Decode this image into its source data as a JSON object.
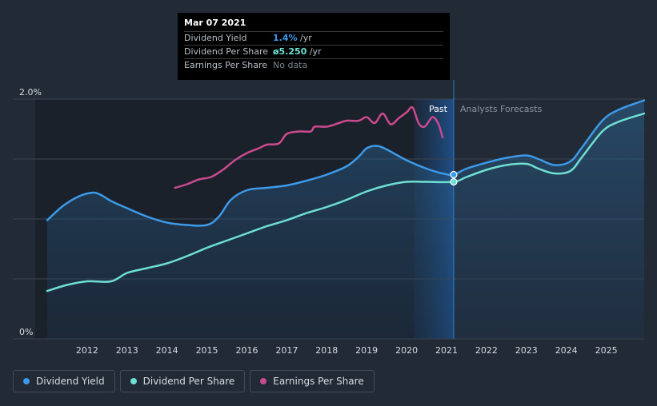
{
  "tooltip": {
    "date": "Mar 07 2021",
    "rows": [
      {
        "label": "Dividend Yield",
        "value": "1.4%",
        "unit": " /yr"
      },
      {
        "label": "Dividend Per Share",
        "value": "ø5.250",
        "unit": " /yr"
      },
      {
        "label": "Earnings Per Share",
        "value": "No data",
        "unit": ""
      }
    ]
  },
  "legend": [
    {
      "label": "Dividend Yield",
      "color": "#3d9ae8"
    },
    {
      "label": "Dividend Per Share",
      "color": "#6ee0d3"
    },
    {
      "label": "Earnings Per Share",
      "color": "#c94a8e"
    }
  ],
  "chart_data": {
    "type": "line",
    "y_ticks": [
      {
        "value": 2.0,
        "label": "2.0%"
      },
      {
        "value": 0,
        "label": "0%"
      }
    ],
    "ylim": [
      0,
      2.0
    ],
    "xlim": [
      2010.7,
      2025.95
    ],
    "x_ticks": [
      "2012",
      "2013",
      "2014",
      "2015",
      "2016",
      "2017",
      "2018",
      "2019",
      "2020",
      "2021",
      "2022",
      "2023",
      "2024",
      "2025"
    ],
    "past_label": "Past",
    "forecast_label": "Analysts Forecasts",
    "past_end": 2021.18,
    "past_band_start": 2020.18,
    "series": [
      {
        "name": "Dividend Yield",
        "color": "#3d9ae8",
        "points": [
          [
            2011.0,
            0.99
          ],
          [
            2011.4,
            1.11
          ],
          [
            2011.8,
            1.19
          ],
          [
            2012.15,
            1.22
          ],
          [
            2012.35,
            1.2
          ],
          [
            2012.6,
            1.15
          ],
          [
            2013.0,
            1.09
          ],
          [
            2013.5,
            1.02
          ],
          [
            2014.0,
            0.97
          ],
          [
            2014.5,
            0.95
          ],
          [
            2015.0,
            0.95
          ],
          [
            2015.3,
            1.02
          ],
          [
            2015.6,
            1.16
          ],
          [
            2016.0,
            1.24
          ],
          [
            2016.5,
            1.26
          ],
          [
            2017.0,
            1.28
          ],
          [
            2017.5,
            1.32
          ],
          [
            2018.0,
            1.37
          ],
          [
            2018.5,
            1.44
          ],
          [
            2018.8,
            1.52
          ],
          [
            2019.0,
            1.59
          ],
          [
            2019.25,
            1.61
          ],
          [
            2019.5,
            1.58
          ],
          [
            2020.0,
            1.49
          ],
          [
            2020.5,
            1.42
          ],
          [
            2020.9,
            1.38
          ],
          [
            2021.18,
            1.37
          ],
          [
            2021.5,
            1.42
          ],
          [
            2022.0,
            1.47
          ],
          [
            2022.5,
            1.51
          ],
          [
            2023.0,
            1.53
          ],
          [
            2023.3,
            1.5
          ],
          [
            2023.7,
            1.45
          ],
          [
            2024.1,
            1.48
          ],
          [
            2024.4,
            1.6
          ],
          [
            2024.9,
            1.82
          ],
          [
            2025.3,
            1.91
          ],
          [
            2025.95,
            1.99
          ]
        ]
      },
      {
        "name": "Dividend Per Share",
        "color": "#6ee0d3",
        "points": [
          [
            2011.0,
            0.4
          ],
          [
            2011.5,
            0.45
          ],
          [
            2012.0,
            0.48
          ],
          [
            2012.6,
            0.48
          ],
          [
            2013.0,
            0.55
          ],
          [
            2013.5,
            0.59
          ],
          [
            2014.0,
            0.63
          ],
          [
            2014.5,
            0.69
          ],
          [
            2015.0,
            0.76
          ],
          [
            2015.5,
            0.82
          ],
          [
            2016.0,
            0.88
          ],
          [
            2016.5,
            0.94
          ],
          [
            2017.0,
            0.99
          ],
          [
            2017.5,
            1.05
          ],
          [
            2018.0,
            1.1
          ],
          [
            2018.5,
            1.16
          ],
          [
            2019.0,
            1.23
          ],
          [
            2019.5,
            1.28
          ],
          [
            2020.0,
            1.31
          ],
          [
            2020.5,
            1.31
          ],
          [
            2021.18,
            1.31
          ],
          [
            2021.5,
            1.35
          ],
          [
            2022.0,
            1.41
          ],
          [
            2022.5,
            1.45
          ],
          [
            2023.0,
            1.46
          ],
          [
            2023.3,
            1.42
          ],
          [
            2023.7,
            1.38
          ],
          [
            2024.1,
            1.4
          ],
          [
            2024.4,
            1.52
          ],
          [
            2024.9,
            1.73
          ],
          [
            2025.3,
            1.81
          ],
          [
            2025.95,
            1.88
          ]
        ]
      },
      {
        "name": "Earnings Per Share",
        "color": "#c94a8e",
        "points": [
          [
            2014.2,
            1.26
          ],
          [
            2014.5,
            1.29
          ],
          [
            2014.8,
            1.33
          ],
          [
            2015.1,
            1.35
          ],
          [
            2015.4,
            1.41
          ],
          [
            2015.7,
            1.49
          ],
          [
            2016.0,
            1.55
          ],
          [
            2016.3,
            1.59
          ],
          [
            2016.5,
            1.62
          ],
          [
            2016.8,
            1.63
          ],
          [
            2017.0,
            1.71
          ],
          [
            2017.3,
            1.73
          ],
          [
            2017.6,
            1.73
          ],
          [
            2017.7,
            1.77
          ],
          [
            2018.0,
            1.77
          ],
          [
            2018.3,
            1.8
          ],
          [
            2018.5,
            1.82
          ],
          [
            2018.8,
            1.82
          ],
          [
            2019.0,
            1.85
          ],
          [
            2019.2,
            1.8
          ],
          [
            2019.4,
            1.88
          ],
          [
            2019.6,
            1.79
          ],
          [
            2019.8,
            1.84
          ],
          [
            2020.0,
            1.89
          ],
          [
            2020.15,
            1.93
          ],
          [
            2020.3,
            1.8
          ],
          [
            2020.45,
            1.77
          ],
          [
            2020.65,
            1.85
          ],
          [
            2020.8,
            1.79
          ],
          [
            2020.9,
            1.68
          ]
        ]
      }
    ],
    "highlight_point": {
      "x": 2021.18,
      "dividend_yield": 1.37,
      "dividend_per_share": 1.31
    }
  }
}
